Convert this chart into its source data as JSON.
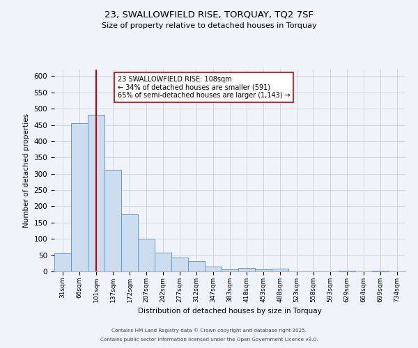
{
  "title": "23, SWALLOWFIELD RISE, TORQUAY, TQ2 7SF",
  "subtitle": "Size of property relative to detached houses in Torquay",
  "xlabel": "Distribution of detached houses by size in Torquay",
  "ylabel": "Number of detached properties",
  "bar_values": [
    55,
    455,
    480,
    312,
    175,
    100,
    58,
    42,
    32,
    15,
    6,
    10,
    6,
    8,
    0,
    0,
    0,
    3,
    0,
    2,
    1
  ],
  "bin_labels": [
    "31sqm",
    "66sqm",
    "101sqm",
    "137sqm",
    "172sqm",
    "207sqm",
    "242sqm",
    "277sqm",
    "312sqm",
    "347sqm",
    "383sqm",
    "418sqm",
    "453sqm",
    "488sqm",
    "523sqm",
    "558sqm",
    "593sqm",
    "629sqm",
    "664sqm",
    "699sqm",
    "734sqm"
  ],
  "bar_color": "#ccddf0",
  "bar_edge_color": "#6699cc",
  "grid_color": "#d0d0d0",
  "vline_x": 2,
  "vline_color": "#cc0000",
  "annotation_title": "23 SWALLOWFIELD RISE: 108sqm",
  "annotation_line1": "← 34% of detached houses are smaller (591)",
  "annotation_line2": "65% of semi-detached houses are larger (1,143) →",
  "annotation_box_color": "#ffffff",
  "annotation_box_edge": "#cc0000",
  "ylim": [
    0,
    620
  ],
  "yticks": [
    0,
    50,
    100,
    150,
    200,
    250,
    300,
    350,
    400,
    450,
    500,
    550,
    600
  ],
  "footnote1": "Contains HM Land Registry data © Crown copyright and database right 2025.",
  "footnote2": "Contains public sector information licensed under the Open Government Licence v3.0.",
  "background_color": "#f0f4fa"
}
